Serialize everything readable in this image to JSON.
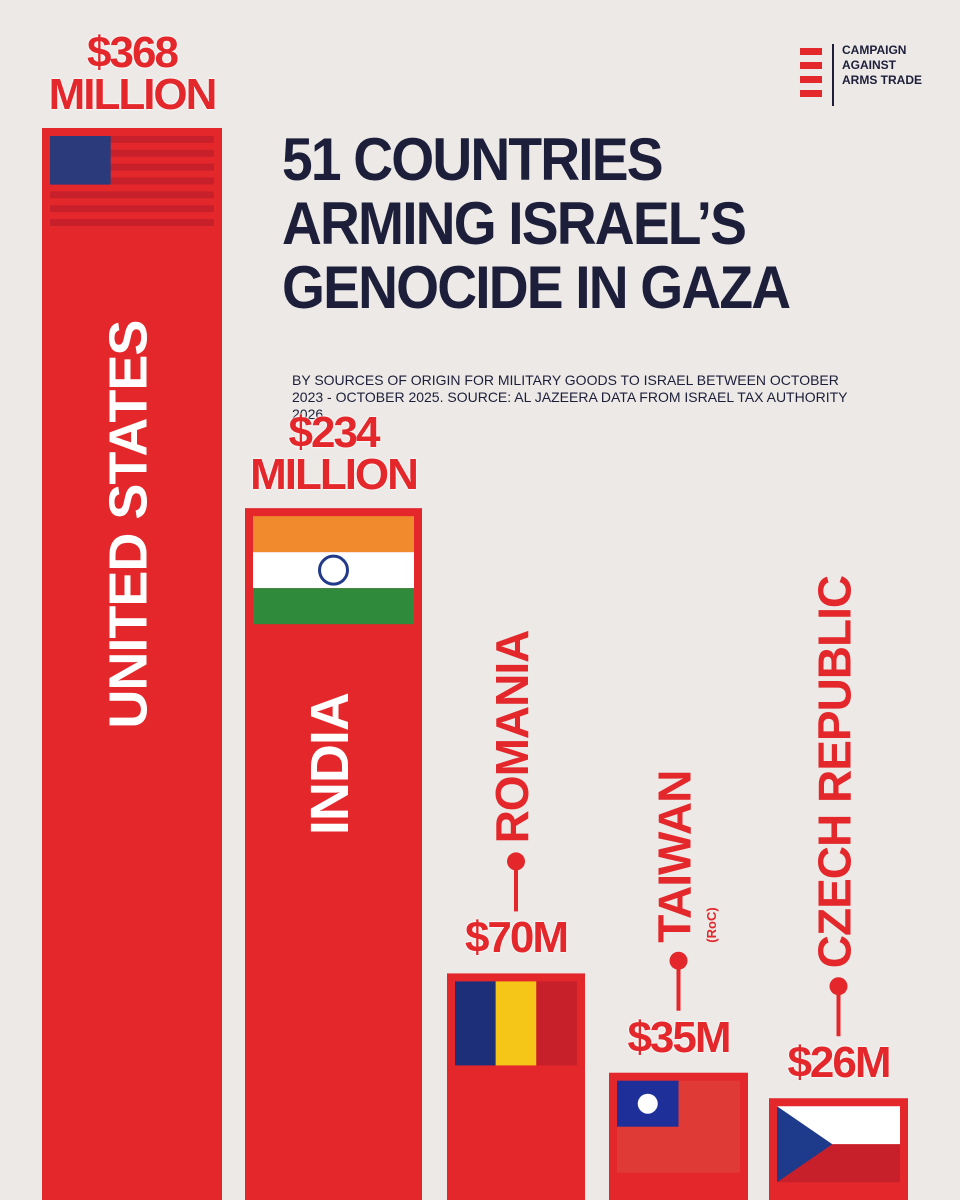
{
  "chart_data": {
    "type": "bar",
    "title": "51 COUNTRIES ARMING ISRAEL’S GENOCIDE IN GAZA",
    "subtitle": "BY SOURCES OF ORIGIN FOR MILITARY GOODS TO ISRAEL BETWEEN OCTOBER 2023 - OCTOBER 2025. SOURCE: AL JAZEERA DATA FROM ISRAEL TAX AUTHORITY 2026",
    "source_logo": "CAMPAIGN AGAINST ARMS TRADE",
    "categories": [
      "UNITED STATES",
      "INDIA",
      "ROMANIA",
      "TAIWAN",
      "CZECH REPUBLIC"
    ],
    "category_notes": [
      null,
      null,
      null,
      "(RoC)",
      null
    ],
    "values": [
      368,
      234,
      70,
      35,
      26
    ],
    "value_labels": [
      "$368 MILLION",
      "$234 MILLION",
      "$70M",
      "$35M",
      "$26M"
    ],
    "color": "#e3272b"
  }
}
